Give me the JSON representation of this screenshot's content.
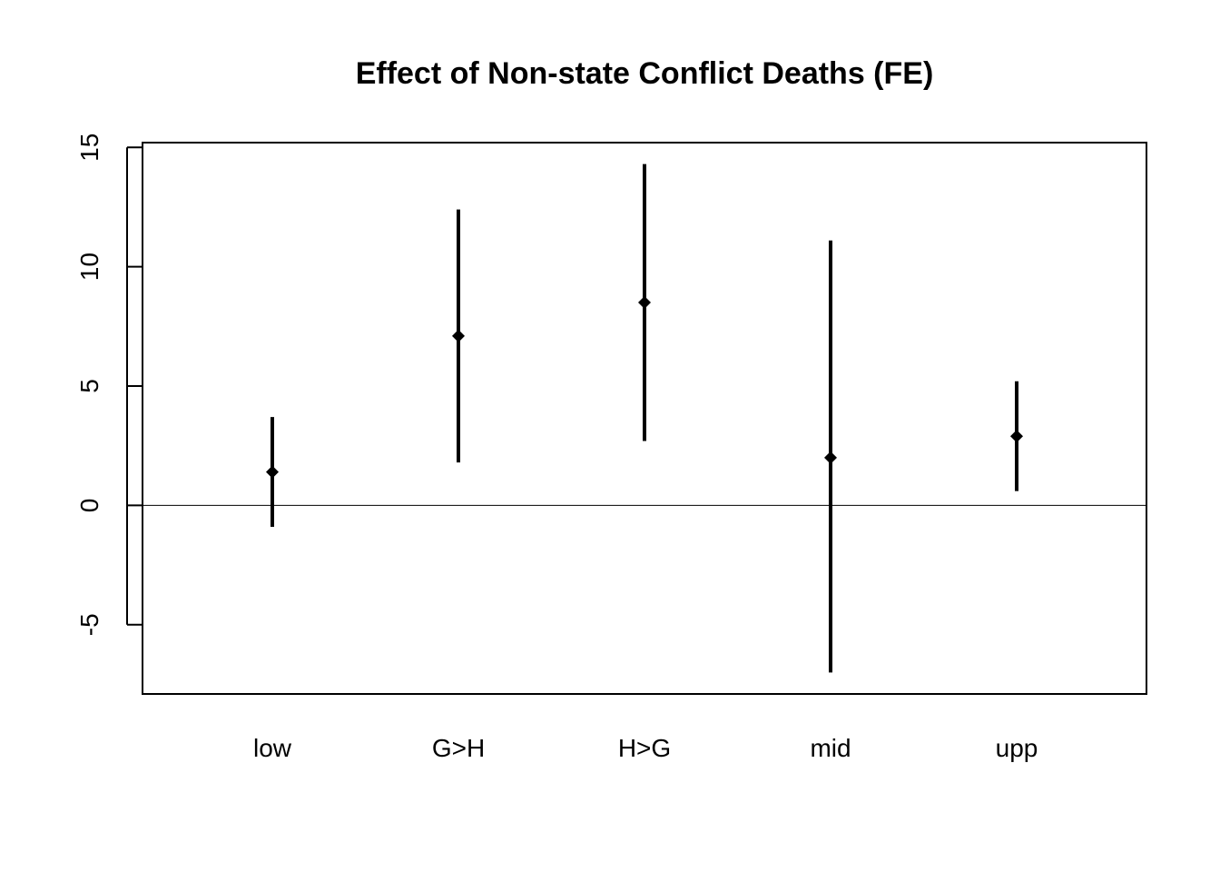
{
  "chart_data": {
    "type": "scatter",
    "title": "Effect of Non-state Conflict Deaths (FE)",
    "xlabel": "",
    "ylabel": "",
    "categories": [
      "low",
      "G>H",
      "H>G",
      "mid",
      "upp"
    ],
    "series": [
      {
        "estimates": [
          1.4,
          7.1,
          8.5,
          2.0,
          2.9
        ],
        "lower": [
          -0.9,
          1.8,
          2.7,
          -7.0,
          0.6
        ],
        "upper": [
          3.7,
          12.4,
          14.3,
          11.1,
          5.2
        ]
      }
    ],
    "ylim": [
      -7.9,
      15.2
    ],
    "yticks": [
      -5,
      0,
      5,
      10,
      15
    ],
    "ytick_labels": [
      "-5",
      "0",
      "5",
      "10",
      "15"
    ],
    "reference_line": 0,
    "grid": false,
    "legend": "none"
  }
}
